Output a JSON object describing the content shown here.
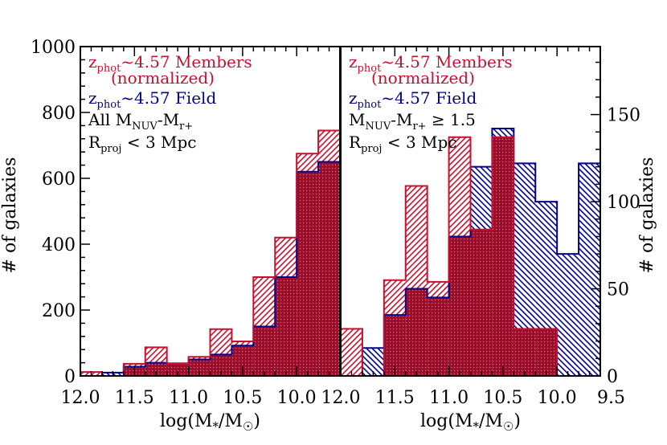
{
  "chart_data": [
    {
      "type": "bar",
      "panel": "left",
      "bin_edges": [
        12.0,
        11.8,
        11.6,
        11.4,
        11.2,
        11.0,
        10.8,
        10.6,
        10.4,
        10.2,
        10.0,
        9.8,
        9.6
      ],
      "xlim": [
        12.0,
        9.6
      ],
      "xticks": [
        "12.0",
        "11.5",
        "11.0",
        "10.5",
        "10.0"
      ],
      "xlabel": "log(M*/M☉)",
      "ylim": [
        0,
        1000
      ],
      "yticks": [
        "0",
        "200",
        "400",
        "600",
        "800",
        "1000"
      ],
      "ylabel": "# of galaxies",
      "series": [
        {
          "name": "zphot~4.57 Field",
          "color": "#00008b",
          "values": [
            0,
            10,
            28,
            40,
            38,
            50,
            65,
            92,
            150,
            300,
            620,
            650
          ]
        },
        {
          "name": "zphot~4.57 Members (normalized)",
          "color": "#c8102e",
          "values": [
            12,
            0,
            37,
            87,
            37,
            58,
            142,
            105,
            300,
            420,
            675,
            745
          ]
        }
      ],
      "legend": [
        {
          "sub": "phot",
          "text": "~4.57 Members",
          "color": "#c8102e"
        },
        {
          "sub": "",
          "text": "(normalized)",
          "color": "#c8102e"
        },
        {
          "sub": "phot",
          "text": "~4.57 Field",
          "color": "#00008b"
        }
      ],
      "annotations": {
        "sel_pre": "All M",
        "sel_sub1": "NUV",
        "sel_mid": "-M",
        "sel_sub2": "r+",
        "sel_post": "",
        "rproj_sub": "proj",
        "rproj_post": " < 3 Mpc"
      }
    },
    {
      "type": "bar",
      "panel": "right",
      "bin_edges": [
        12.0,
        11.8,
        11.6,
        11.4,
        11.2,
        11.0,
        10.8,
        10.6,
        10.4,
        10.2,
        10.0,
        9.8,
        9.6
      ],
      "xlim": [
        12.0,
        9.6
      ],
      "xticks": [
        "12.0",
        "11.5",
        "11.0",
        "10.5",
        "10.0",
        "9.5"
      ],
      "xlabel": "log(M*/M☉)",
      "ylim": [
        0,
        189
      ],
      "yticks": [
        "0",
        "50",
        "100",
        "150"
      ],
      "ylabel": "# of galaxies",
      "series": [
        {
          "name": "zphot~4.57 Field",
          "color": "#00008b",
          "values": [
            0,
            16,
            35,
            50,
            45,
            80,
            120,
            142,
            122,
            100,
            70,
            122
          ]
        },
        {
          "name": "zphot~4.57 Members (normalized)",
          "color": "#c8102e",
          "values": [
            27,
            0,
            55,
            109,
            54,
            137,
            84,
            137,
            27,
            27,
            0,
            0
          ]
        }
      ],
      "legend": [
        {
          "sub": "phot",
          "text": "~4.57 Members",
          "color": "#c8102e"
        },
        {
          "sub": "",
          "text": "(normalized)",
          "color": "#c8102e"
        },
        {
          "sub": "phot",
          "text": "~4.57 Field",
          "color": "#00008b"
        }
      ],
      "annotations": {
        "sel_pre": "M",
        "sel_sub1": "NUV",
        "sel_mid": "-M",
        "sel_sub2": "r+",
        "sel_post": " ≥ 1.5",
        "rproj_sub": "proj",
        "rproj_post": " < 3 Mpc"
      }
    }
  ]
}
